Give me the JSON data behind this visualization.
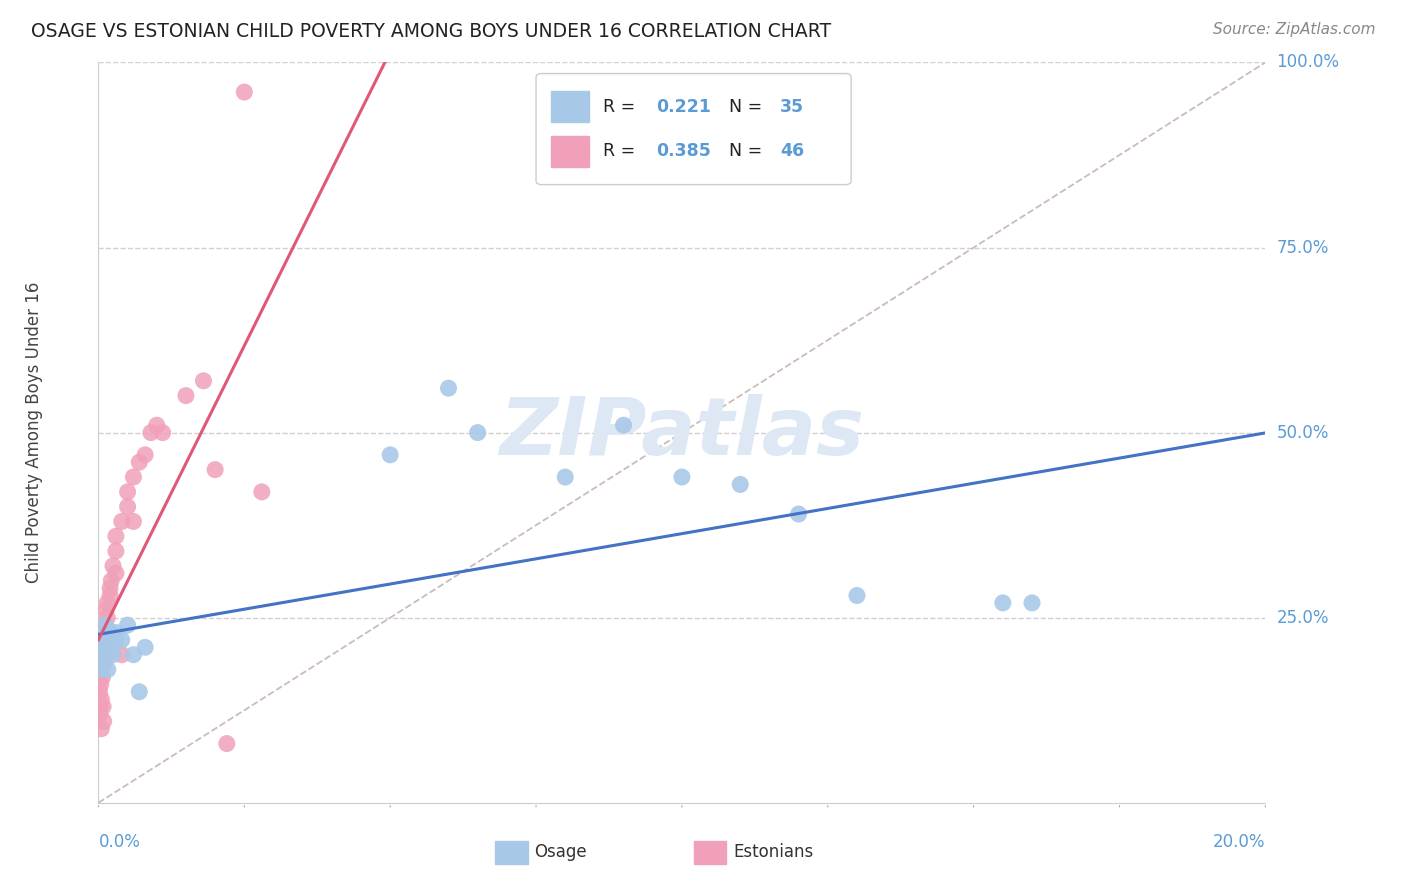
{
  "title": "OSAGE VS ESTONIAN CHILD POVERTY AMONG BOYS UNDER 16 CORRELATION CHART",
  "source": "Source: ZipAtlas.com",
  "ylabel": "Child Poverty Among Boys Under 16",
  "osage_R": 0.221,
  "osage_N": 35,
  "estonian_R": 0.385,
  "estonian_N": 46,
  "osage_color": "#a8c8e8",
  "estonian_color": "#f0a0b8",
  "osage_line_color": "#4472c4",
  "estonian_line_color": "#e05878",
  "axis_label_color": "#5b9bd5",
  "watermark_color": "#dde8f4",
  "grid_color": "#d0d0d0",
  "background_color": "#ffffff",
  "osage_x": [
    0.0002,
    0.0003,
    0.0004,
    0.0005,
    0.0006,
    0.0007,
    0.0008,
    0.001,
    0.001,
    0.001,
    0.0012,
    0.0014,
    0.0015,
    0.0016,
    0.002,
    0.002,
    0.0025,
    0.003,
    0.003,
    0.004,
    0.005,
    0.006,
    0.007,
    0.008,
    0.05,
    0.06,
    0.065,
    0.08,
    0.09,
    0.1,
    0.11,
    0.12,
    0.13,
    0.155,
    0.16
  ],
  "osage_y": [
    0.2,
    0.22,
    0.19,
    0.21,
    0.18,
    0.23,
    0.2,
    0.22,
    0.21,
    0.19,
    0.24,
    0.2,
    0.22,
    0.18,
    0.23,
    0.21,
    0.2,
    0.22,
    0.23,
    0.22,
    0.24,
    0.2,
    0.15,
    0.21,
    0.47,
    0.56,
    0.5,
    0.44,
    0.51,
    0.44,
    0.43,
    0.39,
    0.28,
    0.27,
    0.27
  ],
  "estonian_x": [
    0.0001,
    0.0002,
    0.0002,
    0.0003,
    0.0003,
    0.0004,
    0.0004,
    0.0005,
    0.0005,
    0.0006,
    0.0007,
    0.0008,
    0.0009,
    0.001,
    0.001,
    0.001,
    0.001,
    0.0012,
    0.0013,
    0.0014,
    0.0015,
    0.0015,
    0.002,
    0.002,
    0.0022,
    0.0025,
    0.003,
    0.003,
    0.003,
    0.004,
    0.004,
    0.005,
    0.005,
    0.006,
    0.006,
    0.007,
    0.008,
    0.009,
    0.01,
    0.011,
    0.015,
    0.018,
    0.02,
    0.025,
    0.028,
    0.022
  ],
  "estonian_y": [
    0.17,
    0.15,
    0.13,
    0.18,
    0.12,
    0.2,
    0.16,
    0.14,
    0.1,
    0.19,
    0.17,
    0.13,
    0.11,
    0.22,
    0.19,
    0.21,
    0.2,
    0.24,
    0.26,
    0.22,
    0.27,
    0.25,
    0.29,
    0.28,
    0.3,
    0.32,
    0.34,
    0.31,
    0.36,
    0.38,
    0.2,
    0.4,
    0.42,
    0.44,
    0.38,
    0.46,
    0.47,
    0.5,
    0.51,
    0.5,
    0.55,
    0.57,
    0.45,
    0.96,
    0.42,
    0.08
  ],
  "xlim": [
    0.0,
    0.2
  ],
  "ylim": [
    0.0,
    1.0
  ]
}
